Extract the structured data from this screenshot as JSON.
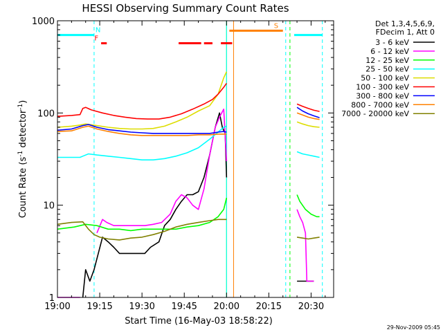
{
  "chart_data": {
    "type": "line",
    "title": "HESSI Observing Summary Count Rates",
    "xlabel": "Start Time (16-May-03 18:58:22)",
    "ylabel_main": "Count Rate (s",
    "ylabel_sup1": "-1",
    "ylabel_mid": " detector",
    "ylabel_sup2": "-1",
    "ylabel_end": ")",
    "footer_date": "29-Nov-2009 05:45",
    "x_unit": "minutes since 19:00",
    "xlim": [
      0,
      98
    ],
    "ylim": [
      1,
      1000
    ],
    "y_scale": "log",
    "x_ticks": [
      {
        "value": 0,
        "label": "19:00"
      },
      {
        "value": 15,
        "label": "19:15"
      },
      {
        "value": 30,
        "label": "19:30"
      },
      {
        "value": 45,
        "label": "19:45"
      },
      {
        "value": 60,
        "label": "20:00"
      },
      {
        "value": 75,
        "label": "20:15"
      },
      {
        "value": 90,
        "label": "20:30"
      }
    ],
    "y_ticks": [
      {
        "value": 1,
        "label": "1"
      },
      {
        "value": 10,
        "label": "10"
      },
      {
        "value": 100,
        "label": "100"
      },
      {
        "value": 1000,
        "label": "1000"
      }
    ],
    "legend": {
      "header1": "Det 1,3,4,5,6,9,",
      "header2": "FDecim 1, Att 0",
      "placement": "right"
    },
    "series": [
      {
        "name": "3 - 6 keV",
        "color": "#000000",
        "segments": [
          [
            [
              9,
              1
            ],
            [
              10,
              2
            ],
            [
              11.5,
              1.5
            ],
            [
              13,
              2
            ],
            [
              14.5,
              3
            ],
            [
              16,
              4.5
            ],
            [
              18,
              4
            ],
            [
              20,
              3.5
            ],
            [
              22,
              3
            ],
            [
              25,
              3
            ],
            [
              28,
              3
            ],
            [
              31,
              3
            ],
            [
              33,
              3.5
            ],
            [
              36,
              4
            ],
            [
              38,
              6
            ],
            [
              40,
              7
            ],
            [
              42,
              9
            ],
            [
              44,
              11
            ],
            [
              46,
              13
            ],
            [
              48,
              13
            ],
            [
              50,
              14
            ],
            [
              52,
              20
            ],
            [
              54,
              35
            ],
            [
              56,
              70
            ],
            [
              57.5,
              100
            ],
            [
              58.5,
              70
            ],
            [
              59.5,
              60
            ],
            [
              60,
              20
            ]
          ],
          [
            [
              85,
              1.5
            ],
            [
              86,
              1.5
            ],
            [
              87,
              1.5
            ],
            [
              88,
              1.5
            ],
            [
              89,
              1.5
            ],
            [
              91,
              1.5
            ]
          ]
        ]
      },
      {
        "name": "6 - 12 keV",
        "color": "#ff00ff",
        "segments": [
          [
            [
              0,
              1
            ],
            [
              8,
              1
            ]
          ],
          [
            [
              14,
              5
            ],
            [
              16,
              7
            ],
            [
              17.5,
              6.5
            ],
            [
              20,
              6
            ],
            [
              22,
              6
            ],
            [
              25,
              6
            ],
            [
              28,
              6
            ],
            [
              31,
              6
            ],
            [
              34,
              6.2
            ],
            [
              37,
              6.5
            ],
            [
              40,
              8
            ],
            [
              42,
              11
            ],
            [
              44,
              13
            ],
            [
              46,
              12
            ],
            [
              48,
              10
            ],
            [
              50,
              9
            ],
            [
              52,
              15
            ],
            [
              54,
              35
            ],
            [
              56,
              70
            ],
            [
              57.5,
              90
            ],
            [
              59,
              110
            ],
            [
              60,
              30
            ]
          ],
          [
            [
              85,
              9
            ],
            [
              86,
              7.5
            ],
            [
              87,
              6.5
            ],
            [
              88,
              5
            ],
            [
              88.5,
              1.5
            ],
            [
              89,
              1.5
            ],
            [
              91,
              1.5
            ]
          ]
        ]
      },
      {
        "name": "12 - 25 keV",
        "color": "#00ff00",
        "segments": [
          [
            [
              0,
              5.5
            ],
            [
              6,
              5.8
            ],
            [
              10,
              6.2
            ],
            [
              14,
              6
            ],
            [
              18,
              5.5
            ],
            [
              22,
              5.5
            ],
            [
              26,
              5.3
            ],
            [
              30,
              5.5
            ],
            [
              34,
              5.5
            ],
            [
              38,
              5.5
            ],
            [
              42,
              5.5
            ],
            [
              46,
              5.8
            ],
            [
              50,
              6
            ],
            [
              54,
              6.5
            ],
            [
              57,
              7.5
            ],
            [
              59,
              9
            ],
            [
              60,
              12
            ]
          ],
          [
            [
              85,
              13
            ],
            [
              86,
              11
            ],
            [
              88,
              9
            ],
            [
              90,
              8
            ],
            [
              92,
              7.5
            ],
            [
              93,
              7.5
            ]
          ]
        ]
      },
      {
        "name": "25 - 50 keV",
        "color": "#00ffff",
        "segments": [
          [
            [
              0,
              33
            ],
            [
              5,
              33
            ],
            [
              8,
              33
            ],
            [
              9,
              34
            ],
            [
              11,
              36
            ],
            [
              14,
              35
            ],
            [
              18,
              34
            ],
            [
              22,
              33
            ],
            [
              26,
              32
            ],
            [
              30,
              31
            ],
            [
              34,
              31
            ],
            [
              38,
              32
            ],
            [
              42,
              34
            ],
            [
              46,
              37
            ],
            [
              50,
              42
            ],
            [
              54,
              52
            ],
            [
              57,
              62
            ],
            [
              58.5,
              68
            ],
            [
              59,
              70
            ],
            [
              60,
              72
            ]
          ],
          [
            [
              85,
              38
            ],
            [
              87,
              36
            ],
            [
              89,
              35
            ],
            [
              91,
              34
            ],
            [
              93,
              33
            ]
          ]
        ]
      },
      {
        "name": "50 - 100 keV",
        "color": "#dddd00",
        "segments": [
          [
            [
              0,
              70
            ],
            [
              5,
              72
            ],
            [
              8,
              74
            ],
            [
              10,
              76
            ],
            [
              14,
              73
            ],
            [
              18,
              70
            ],
            [
              22,
              68
            ],
            [
              26,
              67
            ],
            [
              30,
              67
            ],
            [
              34,
              68
            ],
            [
              38,
              72
            ],
            [
              42,
              80
            ],
            [
              46,
              90
            ],
            [
              50,
              105
            ],
            [
              54,
              120
            ],
            [
              57,
              160
            ],
            [
              59,
              240
            ],
            [
              60,
              280
            ]
          ],
          [
            [
              85,
              80
            ],
            [
              87,
              76
            ],
            [
              89,
              73
            ],
            [
              91,
              71
            ],
            [
              93,
              70
            ]
          ]
        ]
      },
      {
        "name": "100 - 300 keV",
        "color": "#ff0000",
        "segments": [
          [
            [
              0,
              92
            ],
            [
              5,
              94
            ],
            [
              8,
              96
            ],
            [
              9,
              112
            ],
            [
              10,
              115
            ],
            [
              12,
              108
            ],
            [
              16,
              100
            ],
            [
              20,
              94
            ],
            [
              24,
              90
            ],
            [
              28,
              87
            ],
            [
              32,
              86
            ],
            [
              36,
              86
            ],
            [
              40,
              90
            ],
            [
              44,
              98
            ],
            [
              48,
              110
            ],
            [
              52,
              125
            ],
            [
              55,
              140
            ],
            [
              57,
              160
            ],
            [
              59,
              190
            ],
            [
              60,
              210
            ]
          ],
          [
            [
              85,
              125
            ],
            [
              87,
              118
            ],
            [
              89,
              112
            ],
            [
              91,
              107
            ],
            [
              93,
              104
            ]
          ]
        ]
      },
      {
        "name": "300 - 800 keV",
        "color": "#0000ff",
        "segments": [
          [
            [
              0,
              65
            ],
            [
              5,
              67
            ],
            [
              9,
              73
            ],
            [
              11,
              75
            ],
            [
              14,
              70
            ],
            [
              18,
              66
            ],
            [
              22,
              64
            ],
            [
              26,
              62
            ],
            [
              30,
              61
            ],
            [
              34,
              60
            ],
            [
              38,
              60
            ],
            [
              42,
              60
            ],
            [
              46,
              60
            ],
            [
              50,
              60
            ],
            [
              54,
              60
            ],
            [
              57,
              62
            ],
            [
              59,
              63
            ],
            [
              60,
              62
            ]
          ],
          [
            [
              85,
              115
            ],
            [
              87,
              105
            ],
            [
              89,
              98
            ],
            [
              91,
              93
            ],
            [
              93,
              89
            ]
          ]
        ]
      },
      {
        "name": "800 - 7000 keV",
        "color": "#ff8000",
        "segments": [
          [
            [
              0,
              63
            ],
            [
              5,
              64
            ],
            [
              9,
              70
            ],
            [
              11,
              72
            ],
            [
              14,
              67
            ],
            [
              18,
              63
            ],
            [
              22,
              60
            ],
            [
              26,
              58
            ],
            [
              30,
              57
            ],
            [
              34,
              57
            ],
            [
              38,
              57
            ],
            [
              42,
              57
            ],
            [
              46,
              57
            ],
            [
              50,
              58
            ],
            [
              54,
              58
            ],
            [
              57,
              59
            ],
            [
              60,
              59
            ]
          ],
          [
            [
              85,
              100
            ],
            [
              87,
              95
            ],
            [
              89,
              90
            ],
            [
              91,
              87
            ],
            [
              93,
              85
            ]
          ]
        ]
      },
      {
        "name": "7000 - 20000 keV",
        "color": "#808000",
        "segments": [
          [
            [
              0,
              6.2
            ],
            [
              5,
              6.5
            ],
            [
              9,
              6.6
            ],
            [
              11,
              5.5
            ],
            [
              13,
              4.8
            ],
            [
              15,
              4.5
            ],
            [
              18,
              4.3
            ],
            [
              22,
              4.2
            ],
            [
              26,
              4.4
            ],
            [
              30,
              4.5
            ],
            [
              34,
              4.8
            ],
            [
              38,
              5.2
            ],
            [
              42,
              5.8
            ],
            [
              46,
              6.2
            ],
            [
              50,
              6.5
            ],
            [
              54,
              6.8
            ],
            [
              57,
              7
            ],
            [
              60,
              7
            ]
          ],
          [
            [
              85,
              4.5
            ],
            [
              87,
              4.4
            ],
            [
              89,
              4.3
            ],
            [
              91,
              4.4
            ],
            [
              93,
              4.5
            ]
          ]
        ]
      }
    ],
    "flag_bars": [
      {
        "label": "N",
        "color": "#00ffff",
        "y": 700,
        "segments": [
          [
            0,
            13
          ],
          [
            84,
            94
          ]
        ]
      },
      {
        "label": "F",
        "color": "#ff0000",
        "y": 570,
        "segments": [
          [
            15.5,
            17.5
          ],
          [
            43,
            51
          ],
          [
            52,
            55
          ],
          [
            58,
            62
          ]
        ]
      },
      {
        "label": "S",
        "color": "#ff8000",
        "y": 780,
        "segments": [
          [
            61,
            80
          ]
        ]
      }
    ],
    "vertical_lines": [
      {
        "x": 13,
        "color": "#00ffff",
        "dashed": true
      },
      {
        "x": 60,
        "color": "#00ff00",
        "dashed": false
      },
      {
        "x": 60,
        "color": "#00ffff",
        "dashed": false
      },
      {
        "x": 62.5,
        "color": "#ff8000",
        "dashed": false
      },
      {
        "x": 81,
        "color": "#00ffff",
        "dashed": true
      },
      {
        "x": 82.5,
        "color": "#00ff00",
        "dashed": true
      },
      {
        "x": 94,
        "color": "#00ffff",
        "dashed": true
      }
    ]
  }
}
